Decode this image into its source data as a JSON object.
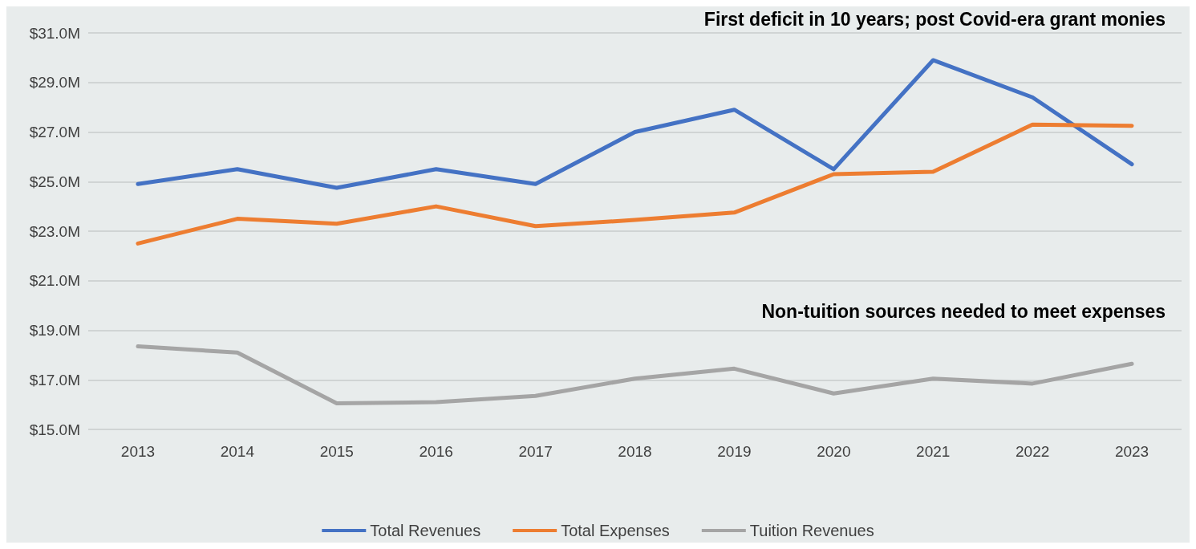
{
  "chart_data": {
    "type": "line",
    "categories": [
      "2013",
      "2014",
      "2015",
      "2016",
      "2017",
      "2018",
      "2019",
      "2020",
      "2021",
      "2022",
      "2023"
    ],
    "series": [
      {
        "name": "Total Revenues",
        "color": "#4472c4",
        "values": [
          24.9,
          25.5,
          24.75,
          25.5,
          24.9,
          27.0,
          27.9,
          25.5,
          29.9,
          28.4,
          25.7
        ]
      },
      {
        "name": "Total Expenses",
        "color": "#ed7d31",
        "values": [
          22.5,
          23.5,
          23.3,
          24.0,
          23.2,
          23.45,
          23.75,
          25.3,
          25.4,
          27.3,
          27.25
        ]
      },
      {
        "name": "Tuition Revenues",
        "color": "#a5a5a5",
        "values": [
          18.35,
          18.1,
          16.05,
          16.1,
          16.35,
          17.05,
          17.45,
          16.45,
          17.05,
          16.85,
          17.65
        ]
      }
    ],
    "ylim": [
      15,
      31
    ],
    "yticks": [
      {
        "value": 15,
        "label": "$15.0M"
      },
      {
        "value": 17,
        "label": "$17.0M"
      },
      {
        "value": 19,
        "label": "$19.0M"
      },
      {
        "value": 21,
        "label": "$21.0M"
      },
      {
        "value": 23,
        "label": "$23.0M"
      },
      {
        "value": 25,
        "label": "$25.0M"
      },
      {
        "value": 27,
        "label": "$27.0M"
      },
      {
        "value": 29,
        "label": "$29.0M"
      },
      {
        "value": 31,
        "label": "$31.0M"
      }
    ],
    "annotations": [
      "First deficit in 10 years; post Covid-era grant monies",
      "Non-tuition sources needed to meet expenses"
    ],
    "grid": "y",
    "legend": "bottom",
    "marker": "none",
    "line_style": "solid"
  }
}
